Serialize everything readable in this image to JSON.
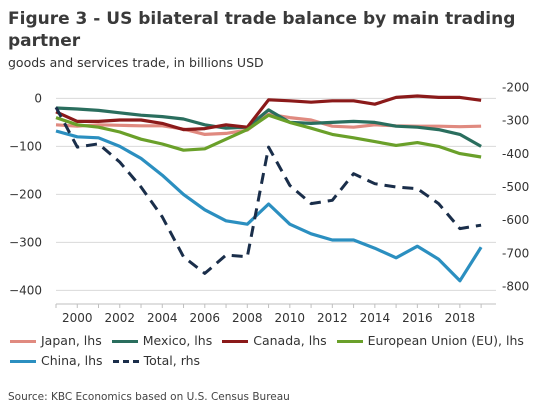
{
  "title": "Figure 3 - US bilateral trade balance by main trading partner",
  "subtitle": "goods and services trade, in billions USD",
  "source": "Source: KBC Economics based on U.S. Census Bureau",
  "chart_data": {
    "type": "line",
    "x": [
      1999,
      2000,
      2001,
      2002,
      2003,
      2004,
      2005,
      2006,
      2007,
      2008,
      2009,
      2010,
      2011,
      2012,
      2013,
      2014,
      2015,
      2016,
      2017,
      2018,
      2019
    ],
    "x_tick_labels": [
      "2000",
      "2002",
      "2004",
      "2006",
      "2008",
      "2010",
      "2012",
      "2014",
      "2016",
      "2018"
    ],
    "left_axis": {
      "ylim": [
        -420,
        30
      ],
      "ticks": [
        0,
        -100,
        -200,
        -300,
        -400
      ],
      "tick_labels": [
        "0",
        "−100",
        "−200",
        "−300",
        "−400"
      ]
    },
    "right_axis": {
      "ylim": [
        -840,
        -190
      ],
      "ticks": [
        -200,
        -300,
        -400,
        -500,
        -600,
        -700,
        -800
      ],
      "tick_labels": [
        "-200",
        "-300",
        "-400",
        "-500",
        "-600",
        "-700",
        "-800"
      ]
    },
    "series": [
      {
        "name": "Japan, lhs",
        "axis": "left",
        "color": "#e08a80",
        "dash": false,
        "values": [
          -55,
          -58,
          -55,
          -56,
          -57,
          -57,
          -64,
          -75,
          -73,
          -66,
          -33,
          -40,
          -45,
          -58,
          -60,
          -55,
          -57,
          -58,
          -58,
          -59,
          -58
        ]
      },
      {
        "name": "Mexico, lhs",
        "axis": "left",
        "color": "#2a6e5e",
        "dash": false,
        "values": [
          -20,
          -22,
          -25,
          -30,
          -35,
          -38,
          -43,
          -55,
          -62,
          -60,
          -24,
          -50,
          -52,
          -50,
          -48,
          -50,
          -58,
          -60,
          -65,
          -75,
          -100
        ]
      },
      {
        "name": "Canada, lhs",
        "axis": "left",
        "color": "#8b1a1a",
        "dash": false,
        "values": [
          -28,
          -48,
          -48,
          -45,
          -45,
          -52,
          -65,
          -63,
          -55,
          -60,
          -3,
          -5,
          -8,
          -5,
          -5,
          -12,
          2,
          5,
          2,
          2,
          -4
        ]
      },
      {
        "name": "European Union (EU), lhs",
        "axis": "left",
        "color": "#6aa02a",
        "dash": false,
        "values": [
          -40,
          -55,
          -60,
          -70,
          -85,
          -95,
          -108,
          -105,
          -85,
          -65,
          -35,
          -50,
          -62,
          -75,
          -82,
          -90,
          -98,
          -92,
          -100,
          -115,
          -122
        ]
      },
      {
        "name": "China, lhs",
        "axis": "left",
        "color": "#2b8fc0",
        "dash": false,
        "values": [
          -68,
          -80,
          -82,
          -100,
          -125,
          -160,
          -200,
          -232,
          -255,
          -262,
          -220,
          -262,
          -282,
          -295,
          -295,
          -312,
          -332,
          -308,
          -335,
          -380,
          -310
        ]
      },
      {
        "name": "Total, rhs",
        "axis": "right",
        "color": "#1a2e4a",
        "dash": true,
        "values": [
          -260,
          -380,
          -370,
          -425,
          -500,
          -590,
          -710,
          -760,
          -705,
          -710,
          -380,
          -495,
          -550,
          -540,
          -460,
          -490,
          -500,
          -505,
          -550,
          -625,
          -615
        ]
      }
    ]
  }
}
